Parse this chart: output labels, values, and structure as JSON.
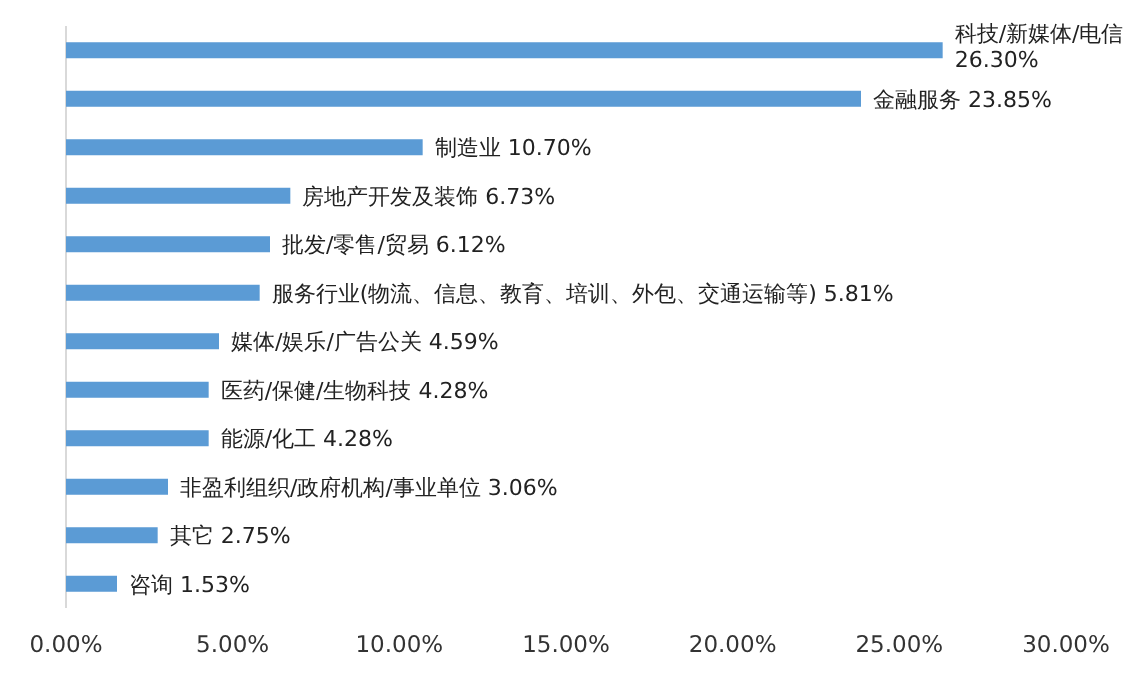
{
  "chart_data": {
    "type": "bar",
    "orientation": "horizontal",
    "categories": [
      "科技/新媒体/电信",
      "金融服务",
      "制造业",
      "房地产开发及装饰",
      "批发/零售/贸易",
      "服务行业(物流、信息、教育、培训、外包、交通运输等)",
      "媒体/娱乐/广告公关",
      "医药/保健/生物科技",
      "能源/化工",
      "非盈利组织/政府机构/事业单位",
      "其它",
      "咨询"
    ],
    "values": [
      26.3,
      23.85,
      10.7,
      6.73,
      6.12,
      5.81,
      4.59,
      4.28,
      4.28,
      3.06,
      2.75,
      1.53
    ],
    "value_labels": [
      "26.30%",
      "23.85%",
      "10.70%",
      "6.73%",
      "6.12%",
      "5.81%",
      "4.59%",
      "4.28%",
      "4.28%",
      "3.06%",
      "2.75%",
      "1.53%"
    ],
    "color": "#5b9bd5",
    "xlim": [
      0,
      30
    ],
    "xticks": [
      {
        "value": 0,
        "label": "0.00%"
      },
      {
        "value": 5,
        "label": "5.00%"
      },
      {
        "value": 10,
        "label": "10.00%"
      },
      {
        "value": 15,
        "label": "15.00%"
      },
      {
        "value": 20,
        "label": "20.00%"
      },
      {
        "value": 25,
        "label": "25.00%"
      },
      {
        "value": 30,
        "label": "30.00%"
      }
    ],
    "grid": false
  }
}
